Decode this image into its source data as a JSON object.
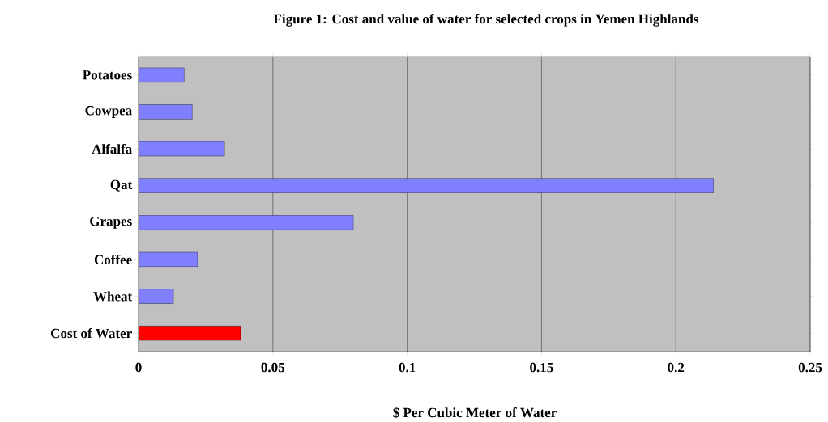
{
  "chart_data": {
    "type": "bar",
    "orientation": "horizontal",
    "title": "Figure 1: Cost and value of water for selected crops in Yemen Highlands",
    "xlabel": "$ Per Cubic Meter of Water",
    "categories": [
      "Potatoes",
      "Cowpea",
      "Alfalfa",
      "Qat",
      "Grapes",
      "Coffee",
      "Wheat",
      "Cost of Water"
    ],
    "values": [
      0.017,
      0.02,
      0.032,
      0.214,
      0.08,
      0.022,
      0.013,
      0.038
    ],
    "colors": [
      "#8080ff",
      "#8080ff",
      "#8080ff",
      "#8080ff",
      "#8080ff",
      "#8080ff",
      "#8080ff",
      "#ff0000"
    ],
    "xlim": [
      0,
      0.25
    ],
    "xticks": [
      0,
      0.05,
      0.1,
      0.15,
      0.2,
      0.25
    ],
    "grid": "x"
  }
}
